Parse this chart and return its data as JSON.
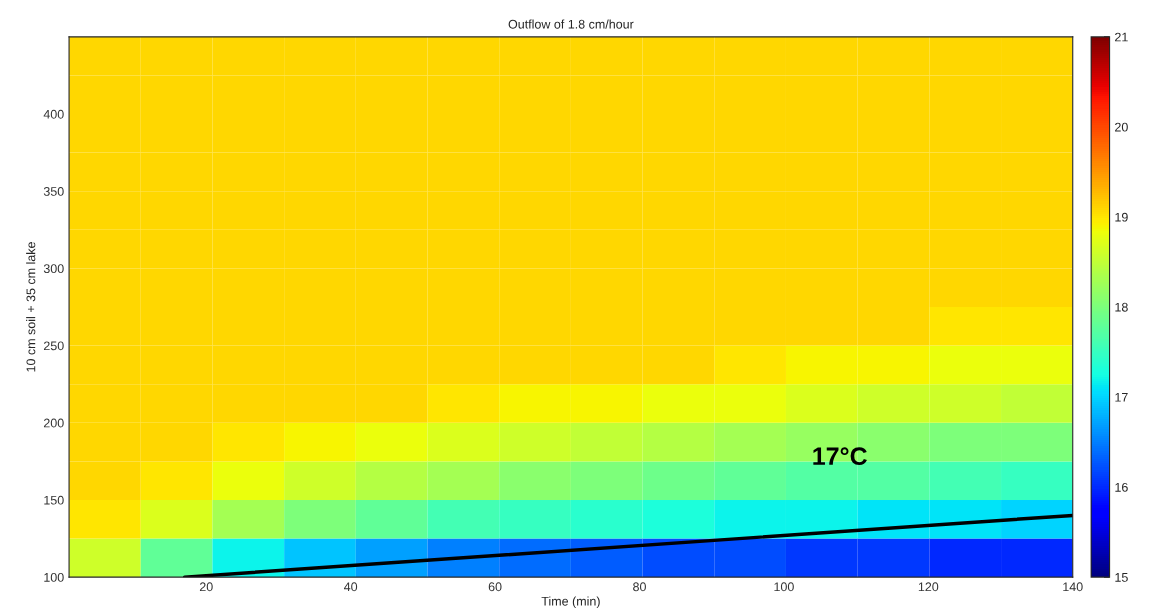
{
  "chart_data": {
    "type": "heatmap",
    "title": "Outflow of 1.8 cm/hour",
    "xlabel": "Time (min)",
    "ylabel": "10 cm soil + 35 cm lake",
    "xlim": [
      1,
      140
    ],
    "ylim": [
      100,
      450
    ],
    "xticks": [
      20,
      40,
      60,
      80,
      100,
      120,
      140
    ],
    "yticks": [
      100,
      150,
      200,
      250,
      300,
      350,
      400
    ],
    "clim": [
      15,
      21
    ],
    "cticks": [
      15,
      16,
      17,
      18,
      19,
      20,
      21
    ],
    "cells": [
      [
        19.1,
        19.1,
        19.1,
        19.1,
        19.1,
        19.1,
        19.1,
        19.1,
        19.1,
        19.1,
        19.1,
        19.1,
        19.1,
        19.1
      ],
      [
        19.1,
        19.1,
        19.1,
        19.1,
        19.1,
        19.1,
        19.1,
        19.1,
        19.1,
        19.1,
        19.1,
        19.1,
        19.1,
        19.1
      ],
      [
        19.1,
        19.1,
        19.1,
        19.1,
        19.1,
        19.1,
        19.1,
        19.1,
        19.1,
        19.1,
        19.1,
        19.1,
        19.1,
        19.1
      ],
      [
        19.1,
        19.1,
        19.1,
        19.1,
        19.1,
        19.1,
        19.1,
        19.1,
        19.1,
        19.1,
        19.1,
        19.1,
        19.1,
        19.1
      ],
      [
        19.1,
        19.1,
        19.1,
        19.1,
        19.1,
        19.1,
        19.1,
        19.1,
        19.1,
        19.1,
        19.1,
        19.1,
        19.1,
        19.1
      ],
      [
        19.1,
        19.1,
        19.1,
        19.1,
        19.1,
        19.1,
        19.1,
        19.1,
        19.1,
        19.1,
        19.1,
        19.1,
        19.1,
        19.1
      ],
      [
        19.1,
        19.1,
        19.1,
        19.1,
        19.1,
        19.1,
        19.1,
        19.1,
        19.1,
        19.1,
        19.1,
        19.1,
        19.1,
        19.1
      ],
      [
        19.1,
        19.1,
        19.1,
        19.1,
        19.1,
        19.1,
        19.1,
        19.1,
        19.1,
        19.1,
        19.1,
        19.1,
        19.0,
        19.0
      ],
      [
        19.1,
        19.1,
        19.1,
        19.1,
        19.1,
        19.1,
        19.1,
        19.1,
        19.1,
        19.0,
        18.9,
        18.9,
        18.8,
        18.8
      ],
      [
        19.1,
        19.1,
        19.1,
        19.1,
        19.1,
        19.0,
        18.9,
        18.9,
        18.8,
        18.8,
        18.7,
        18.6,
        18.6,
        18.5
      ],
      [
        19.1,
        19.1,
        19.0,
        18.9,
        18.8,
        18.7,
        18.6,
        18.5,
        18.4,
        18.3,
        18.2,
        18.1,
        18.0,
        18.0
      ],
      [
        19.1,
        19.0,
        18.8,
        18.6,
        18.4,
        18.3,
        18.1,
        18.0,
        17.9,
        17.8,
        17.7,
        17.7,
        17.6,
        17.5
      ],
      [
        19.0,
        18.7,
        18.3,
        18.0,
        17.8,
        17.6,
        17.5,
        17.4,
        17.3,
        17.2,
        17.2,
        17.1,
        17.1,
        17.0
      ],
      [
        18.6,
        17.8,
        17.2,
        16.9,
        16.7,
        16.5,
        16.4,
        16.3,
        16.2,
        16.2,
        16.1,
        16.1,
        16.0,
        16.0
      ]
    ],
    "series": [
      {
        "type": "line",
        "color": "#000000",
        "x": [
          17,
          140
        ],
        "values": [
          100,
          140
        ]
      }
    ],
    "annotations": [
      "17°C"
    ]
  }
}
